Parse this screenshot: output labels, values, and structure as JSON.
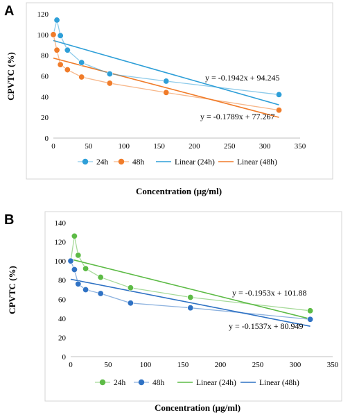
{
  "chart_data": [
    {
      "panel": "A",
      "type": "scatter",
      "xlabel": "Concentration (µg/ml)",
      "ylabel": "CPVTC (%)",
      "xlim": [
        0,
        350
      ],
      "ylim": [
        0,
        120
      ],
      "xticks": [
        0,
        50,
        100,
        150,
        200,
        250,
        300,
        350
      ],
      "yticks": [
        0,
        20,
        40,
        60,
        80,
        100,
        120
      ],
      "grid": false,
      "legend_position": "bottom",
      "series": [
        {
          "name": "24h",
          "color": "#2e9fd8",
          "x": [
            0,
            5,
            10,
            20,
            40,
            80,
            160,
            320
          ],
          "y": [
            100,
            114,
            99,
            85,
            73,
            62,
            55,
            42
          ]
        },
        {
          "name": "48h",
          "color": "#f07c2a",
          "x": [
            0,
            5,
            10,
            20,
            40,
            80,
            160,
            320
          ],
          "y": [
            100,
            85,
            71,
            66,
            59,
            53,
            44,
            27
          ]
        }
      ],
      "trendlines": [
        {
          "name": "Linear (24h)",
          "color": "#2e9fd8",
          "slope": -0.1942,
          "intercept": 94.245,
          "equation": "y = -0.1942x + 94.245"
        },
        {
          "name": "Linear (48h)",
          "color": "#f07c2a",
          "slope": -0.1789,
          "intercept": 77.267,
          "equation": "y = -0.1789x + 77.267"
        }
      ]
    },
    {
      "panel": "B",
      "type": "scatter",
      "xlabel": "Concentration (µg/ml)",
      "ylabel": "CPVTC (%)",
      "xlim": [
        0,
        350
      ],
      "ylim": [
        0,
        140
      ],
      "xticks": [
        0,
        50,
        100,
        150,
        200,
        250,
        300,
        350
      ],
      "yticks": [
        0,
        20,
        40,
        60,
        80,
        100,
        120,
        140
      ],
      "grid": false,
      "legend_position": "bottom",
      "series": [
        {
          "name": "24h",
          "color": "#5dbb46",
          "x": [
            0,
            5,
            10,
            20,
            40,
            80,
            160,
            320
          ],
          "y": [
            100,
            126,
            106,
            92,
            83,
            72,
            62,
            48
          ]
        },
        {
          "name": "48h",
          "color": "#2f72c4",
          "x": [
            0,
            5,
            10,
            20,
            40,
            80,
            160,
            320
          ],
          "y": [
            100,
            91,
            76,
            70,
            66,
            56,
            51,
            39
          ]
        }
      ],
      "trendlines": [
        {
          "name": "Linear (24h)",
          "color": "#5dbb46",
          "slope": -0.1953,
          "intercept": 101.88,
          "equation": "y = -0.1953x + 101.88"
        },
        {
          "name": "Linear (48h)",
          "color": "#2f72c4",
          "slope": -0.1537,
          "intercept": 80.949,
          "equation": "y = -0.1537x + 80.949"
        }
      ]
    }
  ]
}
